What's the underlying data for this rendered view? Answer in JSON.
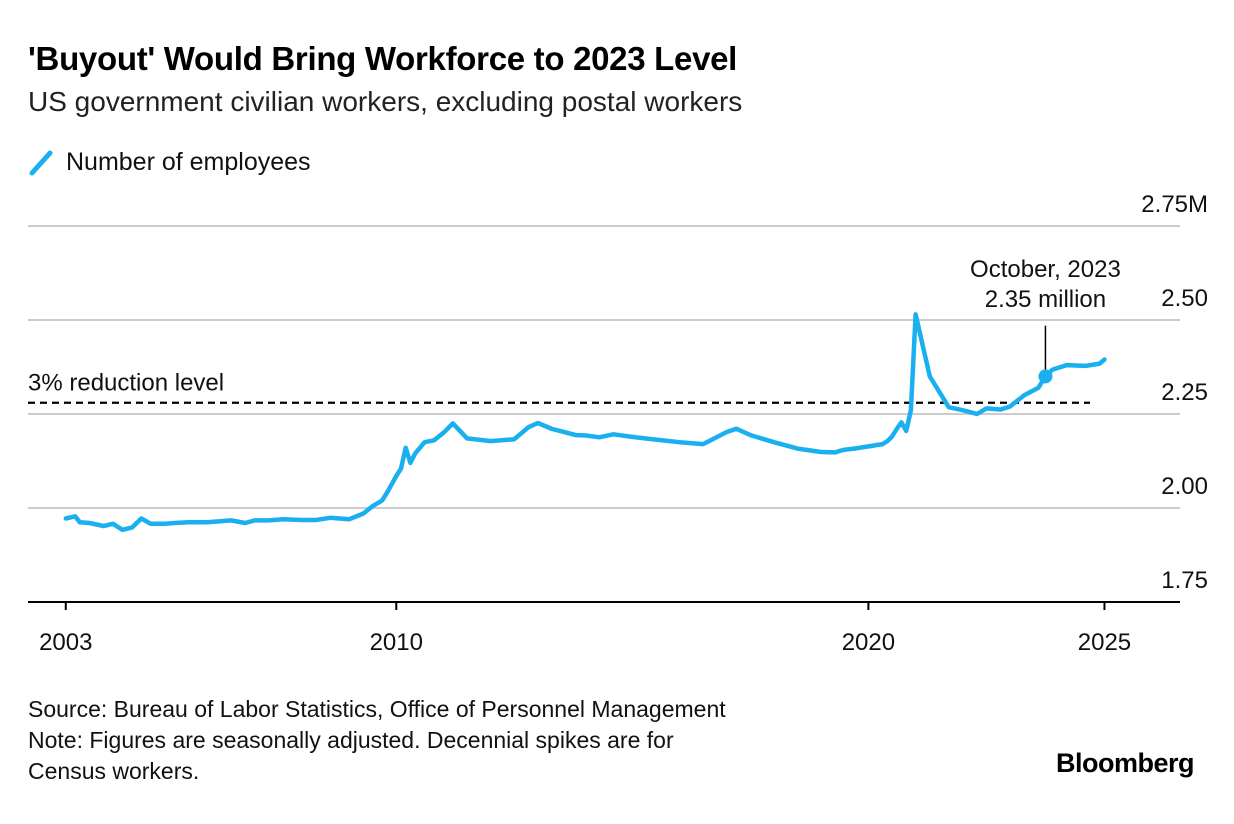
{
  "title": "'Buyout' Would Bring Workforce to 2023 Level",
  "subtitle": "US government civilian workers, excluding postal workers",
  "legend_label": "Number of employees",
  "footer": {
    "source": "Source: Bureau of Labor Statistics, Office of Personnel Management",
    "note_line1": "Note: Figures are seasonally adjusted. Decennial spikes are for",
    "note_line2": "Census workers."
  },
  "brand": "Bloomberg",
  "colors": {
    "series": "#1ab0f0",
    "grid": "#cccccc",
    "axis": "#000000",
    "reference": "#000000"
  },
  "chart_data": {
    "type": "line",
    "title": "'Buyout' Would Bring Workforce to 2023 Level",
    "subtitle": "US government civilian workers, excluding postal workers",
    "xlabel": "",
    "ylabel": "",
    "xlim": [
      2002.2,
      2026.6
    ],
    "ylim": [
      1.75,
      2.75
    ],
    "y_ticks": [
      {
        "value": 1.75,
        "label": "1.75"
      },
      {
        "value": 2.0,
        "label": "2.00"
      },
      {
        "value": 2.25,
        "label": "2.25"
      },
      {
        "value": 2.5,
        "label": "2.50"
      },
      {
        "value": 2.75,
        "label": "2.75M"
      }
    ],
    "x_ticks": [
      {
        "value": 2003,
        "label": "2003"
      },
      {
        "value": 2010,
        "label": "2010"
      },
      {
        "value": 2020,
        "label": "2020"
      },
      {
        "value": 2025,
        "label": "2025"
      }
    ],
    "grid": true,
    "legend_position": "top-left",
    "reference_line": {
      "value": 2.28,
      "label": "3% reduction level"
    },
    "annotation": {
      "x": 2023.75,
      "y": 2.35,
      "line1": "October, 2023",
      "line2": "2.35 million"
    },
    "series": [
      {
        "name": "Number of employees",
        "x": [
          2003.0,
          2003.2,
          2003.3,
          2003.5,
          2003.8,
          2004.0,
          2004.2,
          2004.4,
          2004.6,
          2004.8,
          2005.0,
          2005.1,
          2005.3,
          2005.6,
          2006.0,
          2006.5,
          2006.8,
          2007.0,
          2007.3,
          2007.6,
          2008.0,
          2008.3,
          2008.6,
          2009.0,
          2009.3,
          2009.5,
          2009.7,
          2009.8,
          2009.9,
          2010.0,
          2010.1,
          2010.2,
          2010.3,
          2010.4,
          2010.5,
          2010.6,
          2010.8,
          2011.0,
          2011.2,
          2011.5,
          2012.0,
          2012.5,
          2012.8,
          2013.0,
          2013.3,
          2013.5,
          2013.8,
          2014.0,
          2014.3,
          2014.6,
          2015.0,
          2015.5,
          2016.0,
          2016.5,
          2017.0,
          2017.2,
          2017.5,
          2018.0,
          2018.5,
          2019.0,
          2019.3,
          2019.4,
          2019.5,
          2019.7,
          2019.9,
          2020.1,
          2020.3,
          2020.4,
          2020.5,
          2020.6,
          2020.7,
          2020.8,
          2020.9,
          2021.0,
          2021.3,
          2021.7,
          2022.0,
          2022.3,
          2022.5,
          2022.8,
          2023.0,
          2023.3,
          2023.6,
          2023.75,
          2023.9,
          2024.2,
          2024.6,
          2024.9,
          2025.0
        ],
        "values": [
          1.972,
          1.978,
          1.962,
          1.96,
          1.952,
          1.958,
          1.942,
          1.948,
          1.972,
          1.958,
          1.958,
          1.958,
          1.96,
          1.962,
          1.962,
          1.967,
          1.96,
          1.967,
          1.967,
          1.97,
          1.968,
          1.968,
          1.974,
          1.97,
          1.985,
          2.005,
          2.02,
          2.04,
          2.062,
          2.085,
          2.105,
          2.16,
          2.12,
          2.145,
          2.16,
          2.175,
          2.18,
          2.2,
          2.225,
          2.185,
          2.178,
          2.183,
          2.215,
          2.226,
          2.21,
          2.204,
          2.194,
          2.193,
          2.188,
          2.196,
          2.189,
          2.182,
          2.175,
          2.17,
          2.202,
          2.211,
          2.194,
          2.175,
          2.158,
          2.149,
          2.148,
          2.152,
          2.155,
          2.158,
          2.162,
          2.166,
          2.17,
          2.178,
          2.19,
          2.21,
          2.228,
          2.205,
          2.26,
          2.515,
          2.35,
          2.268,
          2.26,
          2.25,
          2.265,
          2.262,
          2.27,
          2.3,
          2.32,
          2.35,
          2.368,
          2.38,
          2.378,
          2.384,
          2.395
        ]
      }
    ]
  }
}
